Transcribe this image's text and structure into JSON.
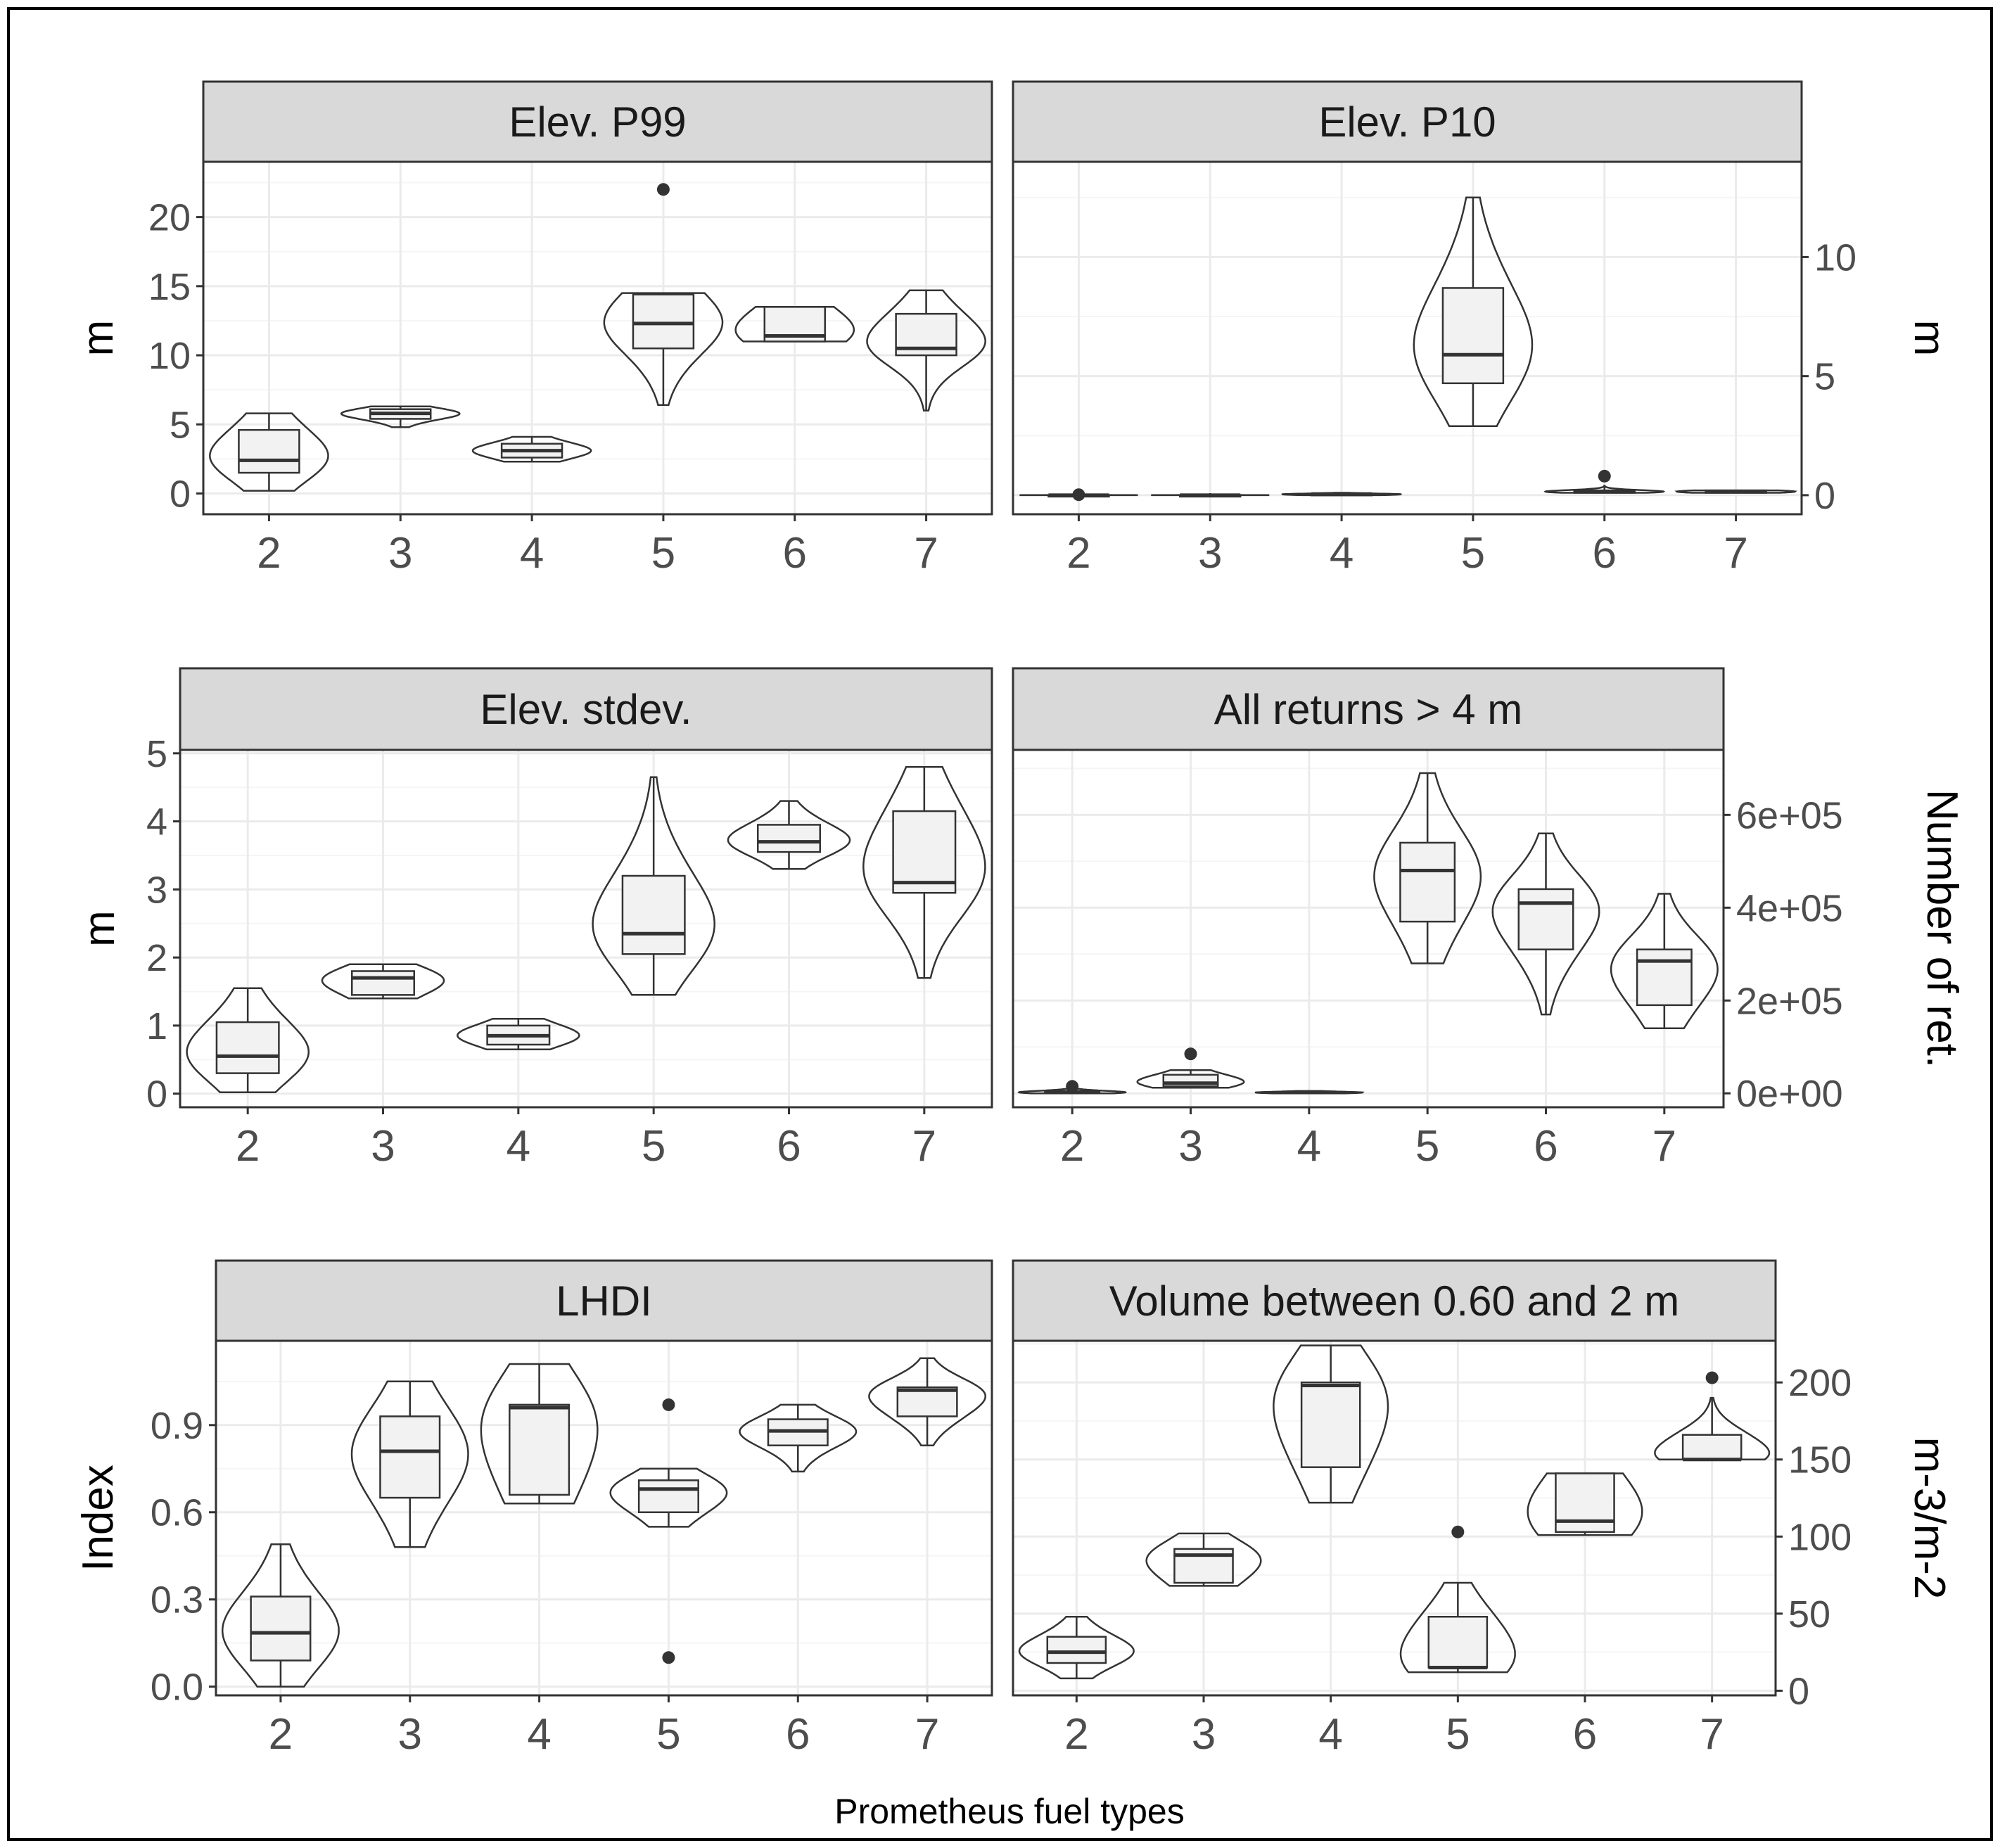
{
  "figure": {
    "x_axis_caption": "Prometheus fuel types",
    "colors": {
      "strip_fill": "#d9d9d9",
      "panel_border": "#333333",
      "grid_major": "#ebebeb",
      "grid_minor": "#f5f5f5",
      "box_fill": "#f2f2f2",
      "outline": "#333333",
      "median": "#333333",
      "outlier": "#333333"
    }
  },
  "chart_data": [
    {
      "type": "violin+box",
      "title": "Elev. P99",
      "ylabel": "m",
      "ylabel_side": "left",
      "categories": [
        "2",
        "3",
        "4",
        "5",
        "6",
        "7"
      ],
      "ylim": [
        -1.5,
        24
      ],
      "yticks": [
        0,
        5,
        10,
        15,
        20
      ],
      "ytick_labels": [
        "0",
        "5",
        "10",
        "15",
        "20"
      ],
      "groups": [
        {
          "category": "2",
          "min": 0.2,
          "q1": 1.5,
          "median": 2.4,
          "q3": 4.6,
          "max": 5.8,
          "outliers": []
        },
        {
          "category": "3",
          "min": 4.8,
          "q1": 5.4,
          "median": 5.8,
          "q3": 6.1,
          "max": 6.3,
          "outliers": []
        },
        {
          "category": "4",
          "min": 2.3,
          "q1": 2.6,
          "median": 3.1,
          "q3": 3.6,
          "max": 4.1,
          "outliers": []
        },
        {
          "category": "5",
          "min": 6.4,
          "q1": 10.5,
          "median": 12.3,
          "q3": 14.4,
          "max": 14.5,
          "outliers": [
            22
          ]
        },
        {
          "category": "6",
          "min": 11,
          "q1": 11,
          "median": 11.4,
          "q3": 13.5,
          "max": 13.5,
          "outliers": []
        },
        {
          "category": "7",
          "min": 6,
          "q1": 10,
          "median": 10.5,
          "q3": 13,
          "max": 14.7,
          "outliers": []
        }
      ]
    },
    {
      "type": "violin+box",
      "title": "Elev. P10",
      "ylabel": "m",
      "ylabel_side": "right",
      "categories": [
        "2",
        "3",
        "4",
        "5",
        "6",
        "7"
      ],
      "ylim": [
        -0.8,
        14
      ],
      "yticks": [
        0,
        5,
        10
      ],
      "ytick_labels": [
        "0",
        "5",
        "10"
      ],
      "groups": [
        {
          "category": "2",
          "min": 0,
          "q1": 0,
          "median": 0,
          "q3": 0,
          "max": 0.05,
          "outliers": [
            0.02
          ]
        },
        {
          "category": "3",
          "min": 0,
          "q1": 0,
          "median": 0,
          "q3": 0,
          "max": 0.05,
          "outliers": []
        },
        {
          "category": "4",
          "min": 0,
          "q1": 0,
          "median": 0.05,
          "q3": 0.05,
          "max": 0.1,
          "outliers": []
        },
        {
          "category": "5",
          "min": 2.9,
          "q1": 4.7,
          "median": 5.9,
          "q3": 8.7,
          "max": 12.5,
          "outliers": []
        },
        {
          "category": "6",
          "min": 0.1,
          "q1": 0.1,
          "median": 0.15,
          "q3": 0.2,
          "max": 0.4,
          "outliers": [
            0.8
          ]
        },
        {
          "category": "7",
          "min": 0.1,
          "q1": 0.1,
          "median": 0.15,
          "q3": 0.2,
          "max": 0.2,
          "outliers": []
        }
      ]
    },
    {
      "type": "violin+box",
      "title": "Elev. stdev.",
      "ylabel": "m",
      "ylabel_side": "left",
      "categories": [
        "2",
        "3",
        "4",
        "5",
        "6",
        "7"
      ],
      "ylim": [
        -0.2,
        5.05
      ],
      "yticks": [
        0,
        1,
        2,
        3,
        4,
        5
      ],
      "ytick_labels": [
        "0",
        "1",
        "2",
        "3",
        "4",
        "5"
      ],
      "groups": [
        {
          "category": "2",
          "min": 0.02,
          "q1": 0.3,
          "median": 0.55,
          "q3": 1.05,
          "max": 1.55,
          "outliers": []
        },
        {
          "category": "3",
          "min": 1.4,
          "q1": 1.45,
          "median": 1.7,
          "q3": 1.8,
          "max": 1.9,
          "outliers": []
        },
        {
          "category": "4",
          "min": 0.65,
          "q1": 0.72,
          "median": 0.85,
          "q3": 1.0,
          "max": 1.1,
          "outliers": []
        },
        {
          "category": "5",
          "min": 1.45,
          "q1": 2.05,
          "median": 2.35,
          "q3": 3.2,
          "max": 4.65,
          "outliers": []
        },
        {
          "category": "6",
          "min": 3.3,
          "q1": 3.55,
          "median": 3.7,
          "q3": 3.95,
          "max": 4.3,
          "outliers": []
        },
        {
          "category": "7",
          "min": 1.7,
          "q1": 2.95,
          "median": 3.1,
          "q3": 4.15,
          "max": 4.8,
          "outliers": []
        }
      ]
    },
    {
      "type": "violin+box",
      "title": "All returns > 4 m",
      "ylabel": "Number of ret.",
      "ylabel_side": "right",
      "categories": [
        "2",
        "3",
        "4",
        "5",
        "6",
        "7"
      ],
      "ylim": [
        -30000,
        740000
      ],
      "yticks": [
        0,
        200000,
        400000,
        600000
      ],
      "ytick_labels": [
        "0e+00",
        "2e+05",
        "4e+05",
        "6e+05"
      ],
      "groups": [
        {
          "category": "2",
          "min": 0,
          "q1": 0,
          "median": 2000,
          "q3": 5000,
          "max": 10000,
          "outliers": [
            15000
          ]
        },
        {
          "category": "3",
          "min": 12000,
          "q1": 15000,
          "median": 22000,
          "q3": 40000,
          "max": 50000,
          "outliers": [
            85000
          ]
        },
        {
          "category": "4",
          "min": 0,
          "q1": 0,
          "median": 2000,
          "q3": 3000,
          "max": 5000,
          "outliers": []
        },
        {
          "category": "5",
          "min": 280000,
          "q1": 370000,
          "median": 480000,
          "q3": 540000,
          "max": 690000,
          "outliers": []
        },
        {
          "category": "6",
          "min": 170000,
          "q1": 310000,
          "median": 410000,
          "q3": 440000,
          "max": 560000,
          "outliers": []
        },
        {
          "category": "7",
          "min": 140000,
          "q1": 190000,
          "median": 285000,
          "q3": 310000,
          "max": 430000,
          "outliers": []
        }
      ]
    },
    {
      "type": "violin+box",
      "title": "LHDI",
      "ylabel": "Index",
      "ylabel_side": "left",
      "categories": [
        "2",
        "3",
        "4",
        "5",
        "6",
        "7"
      ],
      "ylim": [
        -0.03,
        1.19
      ],
      "yticks": [
        0,
        0.3,
        0.6,
        0.9
      ],
      "ytick_labels": [
        "0.0",
        "0.3",
        "0.6",
        "0.9"
      ],
      "groups": [
        {
          "category": "2",
          "min": 0.0,
          "q1": 0.09,
          "median": 0.185,
          "q3": 0.31,
          "max": 0.49,
          "outliers": []
        },
        {
          "category": "3",
          "min": 0.48,
          "q1": 0.65,
          "median": 0.81,
          "q3": 0.93,
          "max": 1.05,
          "outliers": []
        },
        {
          "category": "4",
          "min": 0.63,
          "q1": 0.66,
          "median": 0.96,
          "q3": 0.97,
          "max": 1.11,
          "outliers": []
        },
        {
          "category": "5",
          "min": 0.55,
          "q1": 0.6,
          "median": 0.68,
          "q3": 0.71,
          "max": 0.75,
          "outliers": [
            0.97,
            0.1
          ]
        },
        {
          "category": "6",
          "min": 0.74,
          "q1": 0.83,
          "median": 0.88,
          "q3": 0.92,
          "max": 0.97,
          "outliers": []
        },
        {
          "category": "7",
          "min": 0.83,
          "q1": 0.93,
          "median": 1.02,
          "q3": 1.03,
          "max": 1.13,
          "outliers": []
        }
      ]
    },
    {
      "type": "violin+box",
      "title": "Volume between 0.60 and 2 m",
      "ylabel": "m-3/m-2",
      "ylabel_side": "right",
      "categories": [
        "2",
        "3",
        "4",
        "5",
        "6",
        "7"
      ],
      "ylim": [
        -3,
        227
      ],
      "yticks": [
        0,
        50,
        100,
        150,
        200
      ],
      "ytick_labels": [
        "0",
        "50",
        "100",
        "150",
        "200"
      ],
      "groups": [
        {
          "category": "2",
          "min": 8,
          "q1": 18,
          "median": 25,
          "q3": 35,
          "max": 48,
          "outliers": []
        },
        {
          "category": "3",
          "min": 68,
          "q1": 70,
          "median": 88,
          "q3": 92,
          "max": 102,
          "outliers": []
        },
        {
          "category": "4",
          "min": 122,
          "q1": 145,
          "median": 198,
          "q3": 200,
          "max": 224,
          "outliers": []
        },
        {
          "category": "5",
          "min": 12,
          "q1": 15,
          "median": 15,
          "q3": 48,
          "max": 70,
          "outliers": [
            103
          ]
        },
        {
          "category": "6",
          "min": 101,
          "q1": 103,
          "median": 110,
          "q3": 141,
          "max": 141,
          "outliers": []
        },
        {
          "category": "7",
          "min": 150,
          "q1": 150,
          "median": 150,
          "q3": 166,
          "max": 190,
          "outliers": [
            203
          ]
        }
      ]
    }
  ]
}
